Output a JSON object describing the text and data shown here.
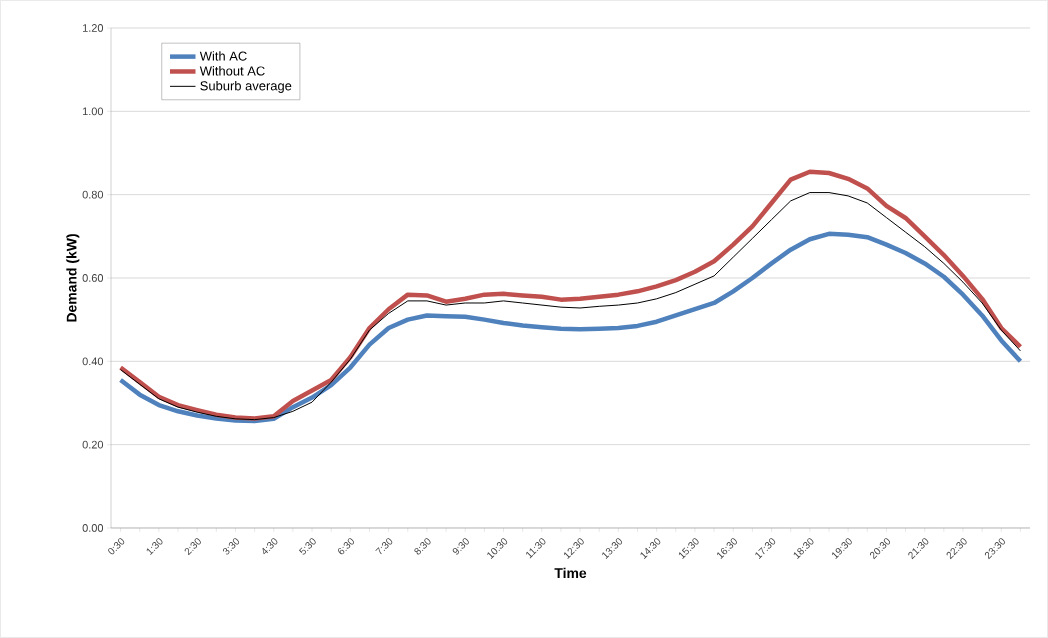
{
  "chart_data": {
    "type": "line",
    "xlabel": "Time",
    "ylabel": "Demand (kW)",
    "categories": [
      "0:30",
      null,
      "1:30",
      null,
      "2:30",
      null,
      "3:30",
      null,
      "4:30",
      null,
      "5:30",
      null,
      "6:30",
      null,
      "7:30",
      null,
      "8:30",
      null,
      "9:30",
      null,
      "10:30",
      null,
      "11:30",
      null,
      "12:30",
      null,
      "13:30",
      null,
      "14:30",
      null,
      "15:30",
      null,
      "16:30",
      null,
      "17:30",
      null,
      "18:30",
      null,
      "19:30",
      null,
      "20:30",
      null,
      "21:30",
      null,
      "22:30",
      null,
      "23:30",
      null
    ],
    "series": [
      {
        "name": "With AC",
        "color": "#4f81bd",
        "values": [
          0.355,
          0.32,
          0.295,
          0.28,
          0.27,
          0.263,
          0.258,
          0.257,
          0.262,
          0.29,
          0.313,
          0.343,
          0.385,
          0.44,
          0.48,
          0.5,
          0.51,
          0.508,
          0.507,
          0.5,
          0.492,
          0.486,
          0.482,
          0.478,
          0.477,
          0.478,
          0.48,
          0.485,
          0.495,
          0.51,
          0.525,
          0.54,
          0.568,
          0.6,
          0.635,
          0.668,
          0.693,
          0.706,
          0.704,
          0.698,
          0.68,
          0.66,
          0.635,
          0.603,
          0.56,
          0.51,
          0.45,
          0.4
        ]
      },
      {
        "name": "Without AC",
        "color": "#c0504d",
        "values": [
          0.385,
          0.35,
          0.315,
          0.295,
          0.283,
          0.272,
          0.265,
          0.263,
          0.268,
          0.305,
          0.33,
          0.355,
          0.41,
          0.48,
          0.525,
          0.56,
          0.558,
          0.543,
          0.55,
          0.56,
          0.562,
          0.558,
          0.555,
          0.548,
          0.55,
          0.555,
          0.56,
          0.568,
          0.58,
          0.595,
          0.615,
          0.64,
          0.68,
          0.724,
          0.78,
          0.836,
          0.855,
          0.852,
          0.838,
          0.815,
          0.773,
          0.744,
          0.7,
          0.655,
          0.605,
          0.55,
          0.48,
          0.435
        ]
      },
      {
        "name": "Suburb average",
        "color": "#000000",
        "values": [
          0.38,
          0.345,
          0.31,
          0.29,
          0.278,
          0.268,
          0.262,
          0.26,
          0.265,
          0.28,
          0.302,
          0.35,
          0.405,
          0.475,
          0.515,
          0.545,
          0.545,
          0.535,
          0.54,
          0.54,
          0.545,
          0.54,
          0.535,
          0.53,
          0.528,
          0.532,
          0.535,
          0.54,
          0.55,
          0.565,
          0.585,
          0.605,
          0.65,
          0.695,
          0.74,
          0.785,
          0.805,
          0.805,
          0.797,
          0.78,
          0.745,
          0.71,
          0.675,
          0.635,
          0.59,
          0.54,
          0.475,
          0.425
        ]
      }
    ],
    "ylim": [
      0,
      1.2
    ],
    "yticks": [
      {
        "value": 0,
        "label": "0.00"
      },
      {
        "value": 0.2,
        "label": "0.20"
      },
      {
        "value": 0.4,
        "label": "0.40"
      },
      {
        "value": 0.6,
        "label": "0.60"
      },
      {
        "value": 0.8,
        "label": "0.80"
      },
      {
        "value": 1.0,
        "label": "1.00"
      },
      {
        "value": 1.2,
        "label": "1.20"
      }
    ],
    "grid": "y",
    "legend": "top left",
    "marker": "none",
    "line_style": "solid"
  }
}
